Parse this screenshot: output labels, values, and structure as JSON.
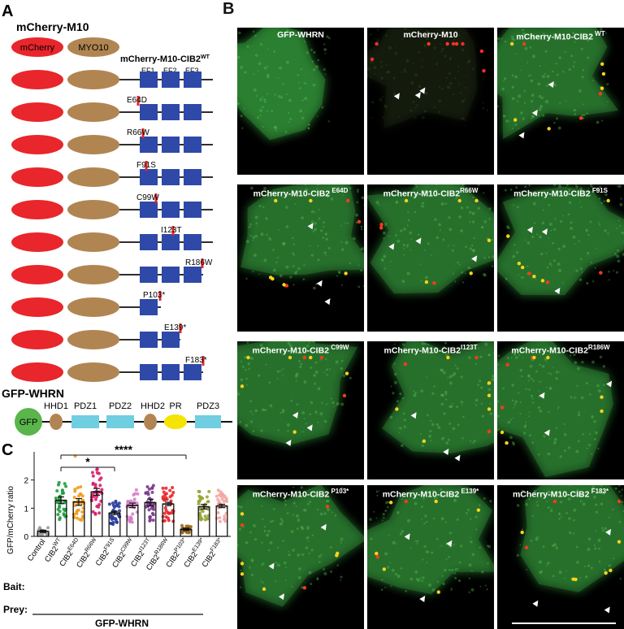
{
  "panelA": {
    "letter": "A",
    "title": "mCherry-M10",
    "legend_mcherry": "mCherry",
    "legend_myo10": "MYO10",
    "construct_header": "mCherry-M10-CIB2",
    "construct_header_sup": "WT",
    "ef_labels": [
      "EF1",
      "EF2",
      "EF3"
    ],
    "rows": [
      {
        "label": "",
        "mutation": "WT"
      },
      {
        "label": "E64D"
      },
      {
        "label": "R66W"
      },
      {
        "label": "F91S"
      },
      {
        "label": "C99W"
      },
      {
        "label": "I123T"
      },
      {
        "label": "R186W"
      },
      {
        "label": "P103*"
      },
      {
        "label": "E139*"
      },
      {
        "label": "F183*"
      }
    ],
    "whrn_title": "GFP-WHRN",
    "whrn_domains": [
      "GFP",
      "HHD1",
      "PDZ1",
      "PDZ2",
      "HHD2",
      "PR",
      "PDZ3"
    ],
    "colors": {
      "mcherry": "#e8262b",
      "myo10": "#b18552",
      "ef": "#2e49a8",
      "mut": "#e8262b",
      "pdz": "#6fcfe0",
      "gfp": "#5ab54b",
      "pr": "#f4e400"
    }
  },
  "panelB": {
    "letter": "B",
    "tiles": [
      {
        "title": "GFP-WHRN",
        "sup": "",
        "type": "green"
      },
      {
        "title": "mCherry-M10",
        "sup": "",
        "type": "red"
      },
      {
        "title": "mCherry-M10-CIB2",
        "sup": " WT",
        "type": "merge"
      },
      {
        "title": "mCherry-M10-CIB2",
        "sup": " E64D",
        "type": "merge"
      },
      {
        "title": "mCherry-M10-CIB2",
        "sup": "R66W",
        "type": "merge"
      },
      {
        "title": "mCherry-M10-CIB2",
        "sup": " F91S",
        "type": "merge"
      },
      {
        "title": "mCherry-M10-CIB2",
        "sup": " C99W",
        "type": "merge"
      },
      {
        "title": "mCherry-M10-CIB2",
        "sup": "I123T",
        "type": "merge"
      },
      {
        "title": "mCherry-M10-CIB2",
        "sup": "R186W",
        "type": "merge"
      },
      {
        "title": "mCherry-M10-CIB2",
        "sup": " P103*",
        "type": "merge"
      },
      {
        "title": "mCherry-M10-CIB2",
        "sup": " E139*",
        "type": "merge"
      },
      {
        "title": "mCherry-M10-CIB2",
        "sup": " F183*",
        "type": "merge"
      }
    ]
  },
  "chart_data": {
    "type": "bar",
    "letter": "C",
    "ylabel": "GFP/mCherry ratio",
    "ylim": [
      0,
      3
    ],
    "yticks": [
      0,
      1,
      2
    ],
    "categories": [
      "Control",
      "CIB2WT",
      "CIB2E64D",
      "CIB2R66W",
      "CIB2F91S",
      "CIB2C99W",
      "CIB2I123T",
      "CIB2R186W",
      "CIB2P103*",
      "CIB2E139*",
      "CIB2F183*"
    ],
    "category_labels": [
      {
        "main": "Control",
        "sup": ""
      },
      {
        "main": "CIB2",
        "sup": "WT"
      },
      {
        "main": "CIB2",
        "sup": "E64D"
      },
      {
        "main": "CIB2",
        "sup": "R66W"
      },
      {
        "main": "CIB2",
        "sup": "F91S"
      },
      {
        "main": "CIB2",
        "sup": "C99W"
      },
      {
        "main": "CIB2",
        "sup": "I123T"
      },
      {
        "main": "CIB2",
        "sup": "R186W"
      },
      {
        "main": "CIB2",
        "sup": "P103*"
      },
      {
        "main": "CIB2",
        "sup": "E139*"
      },
      {
        "main": "CIB2",
        "sup": "F183*"
      }
    ],
    "values": [
      0.18,
      1.28,
      1.22,
      1.58,
      0.83,
      1.1,
      1.2,
      1.15,
      0.25,
      1.05,
      1.08
    ],
    "errors": [
      0.04,
      0.12,
      0.12,
      0.12,
      0.06,
      0.08,
      0.12,
      0.06,
      0.04,
      0.08,
      0.06
    ],
    "dot_colors": [
      "#999999",
      "#1f9e3f",
      "#f29a1f",
      "#d81c6d",
      "#2b3d9c",
      "#d77dc6",
      "#7c3b8c",
      "#e8262b",
      "#a06a1e",
      "#9aa33a",
      "#f2a7a2"
    ],
    "significance": [
      {
        "from": 1,
        "to": 4,
        "label": "*"
      },
      {
        "from": 1,
        "to": 8,
        "label": "****"
      }
    ],
    "bait_label": "Bait:",
    "prey_label": "Prey:",
    "prey_value": "GFP-WHRN"
  }
}
